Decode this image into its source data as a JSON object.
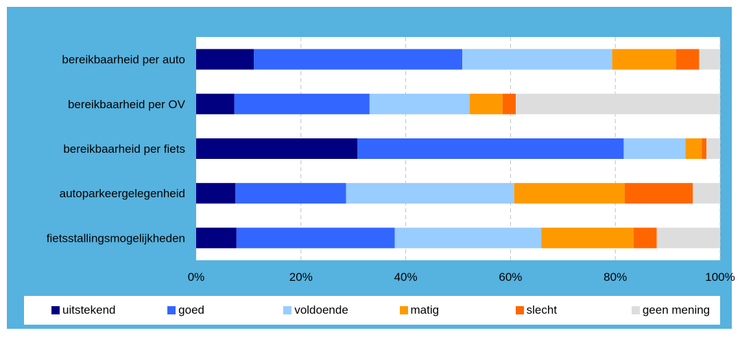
{
  "chart_data": {
    "type": "bar",
    "orientation": "horizontal",
    "stacked": true,
    "categories": [
      "bereikbaarheid per auto",
      "bereikbaarheid per OV",
      "bereikbaarheid per fiets",
      "autoparkeergelegenheid",
      "fietsstallingsmogelijkheden"
    ],
    "series": [
      {
        "name": "uitstekend",
        "color": "#000080",
        "values": [
          11,
          7.3,
          30.8,
          7.5,
          7.7
        ]
      },
      {
        "name": "goed",
        "color": "#3366ff",
        "values": [
          39.8,
          25.8,
          50.8,
          21.1,
          30.2
        ]
      },
      {
        "name": "voldoende",
        "color": "#99ccff",
        "values": [
          28.6,
          19.1,
          11.8,
          32.1,
          28
        ]
      },
      {
        "name": "matig",
        "color": "#ff9900",
        "values": [
          12.2,
          6.3,
          3.1,
          21.1,
          17.6
        ]
      },
      {
        "name": "slecht",
        "color": "#ff6600",
        "values": [
          4.4,
          2.5,
          0.9,
          13,
          4.4
        ]
      },
      {
        "name": "geen mening",
        "color": "#dddddd",
        "values": [
          4,
          39,
          2.6,
          5.2,
          12.1
        ]
      }
    ],
    "xlim": [
      0,
      100
    ],
    "xticks": [
      "0%",
      "20%",
      "40%",
      "60%",
      "80%",
      "100%"
    ],
    "grid": true,
    "legend_position": "bottom"
  }
}
